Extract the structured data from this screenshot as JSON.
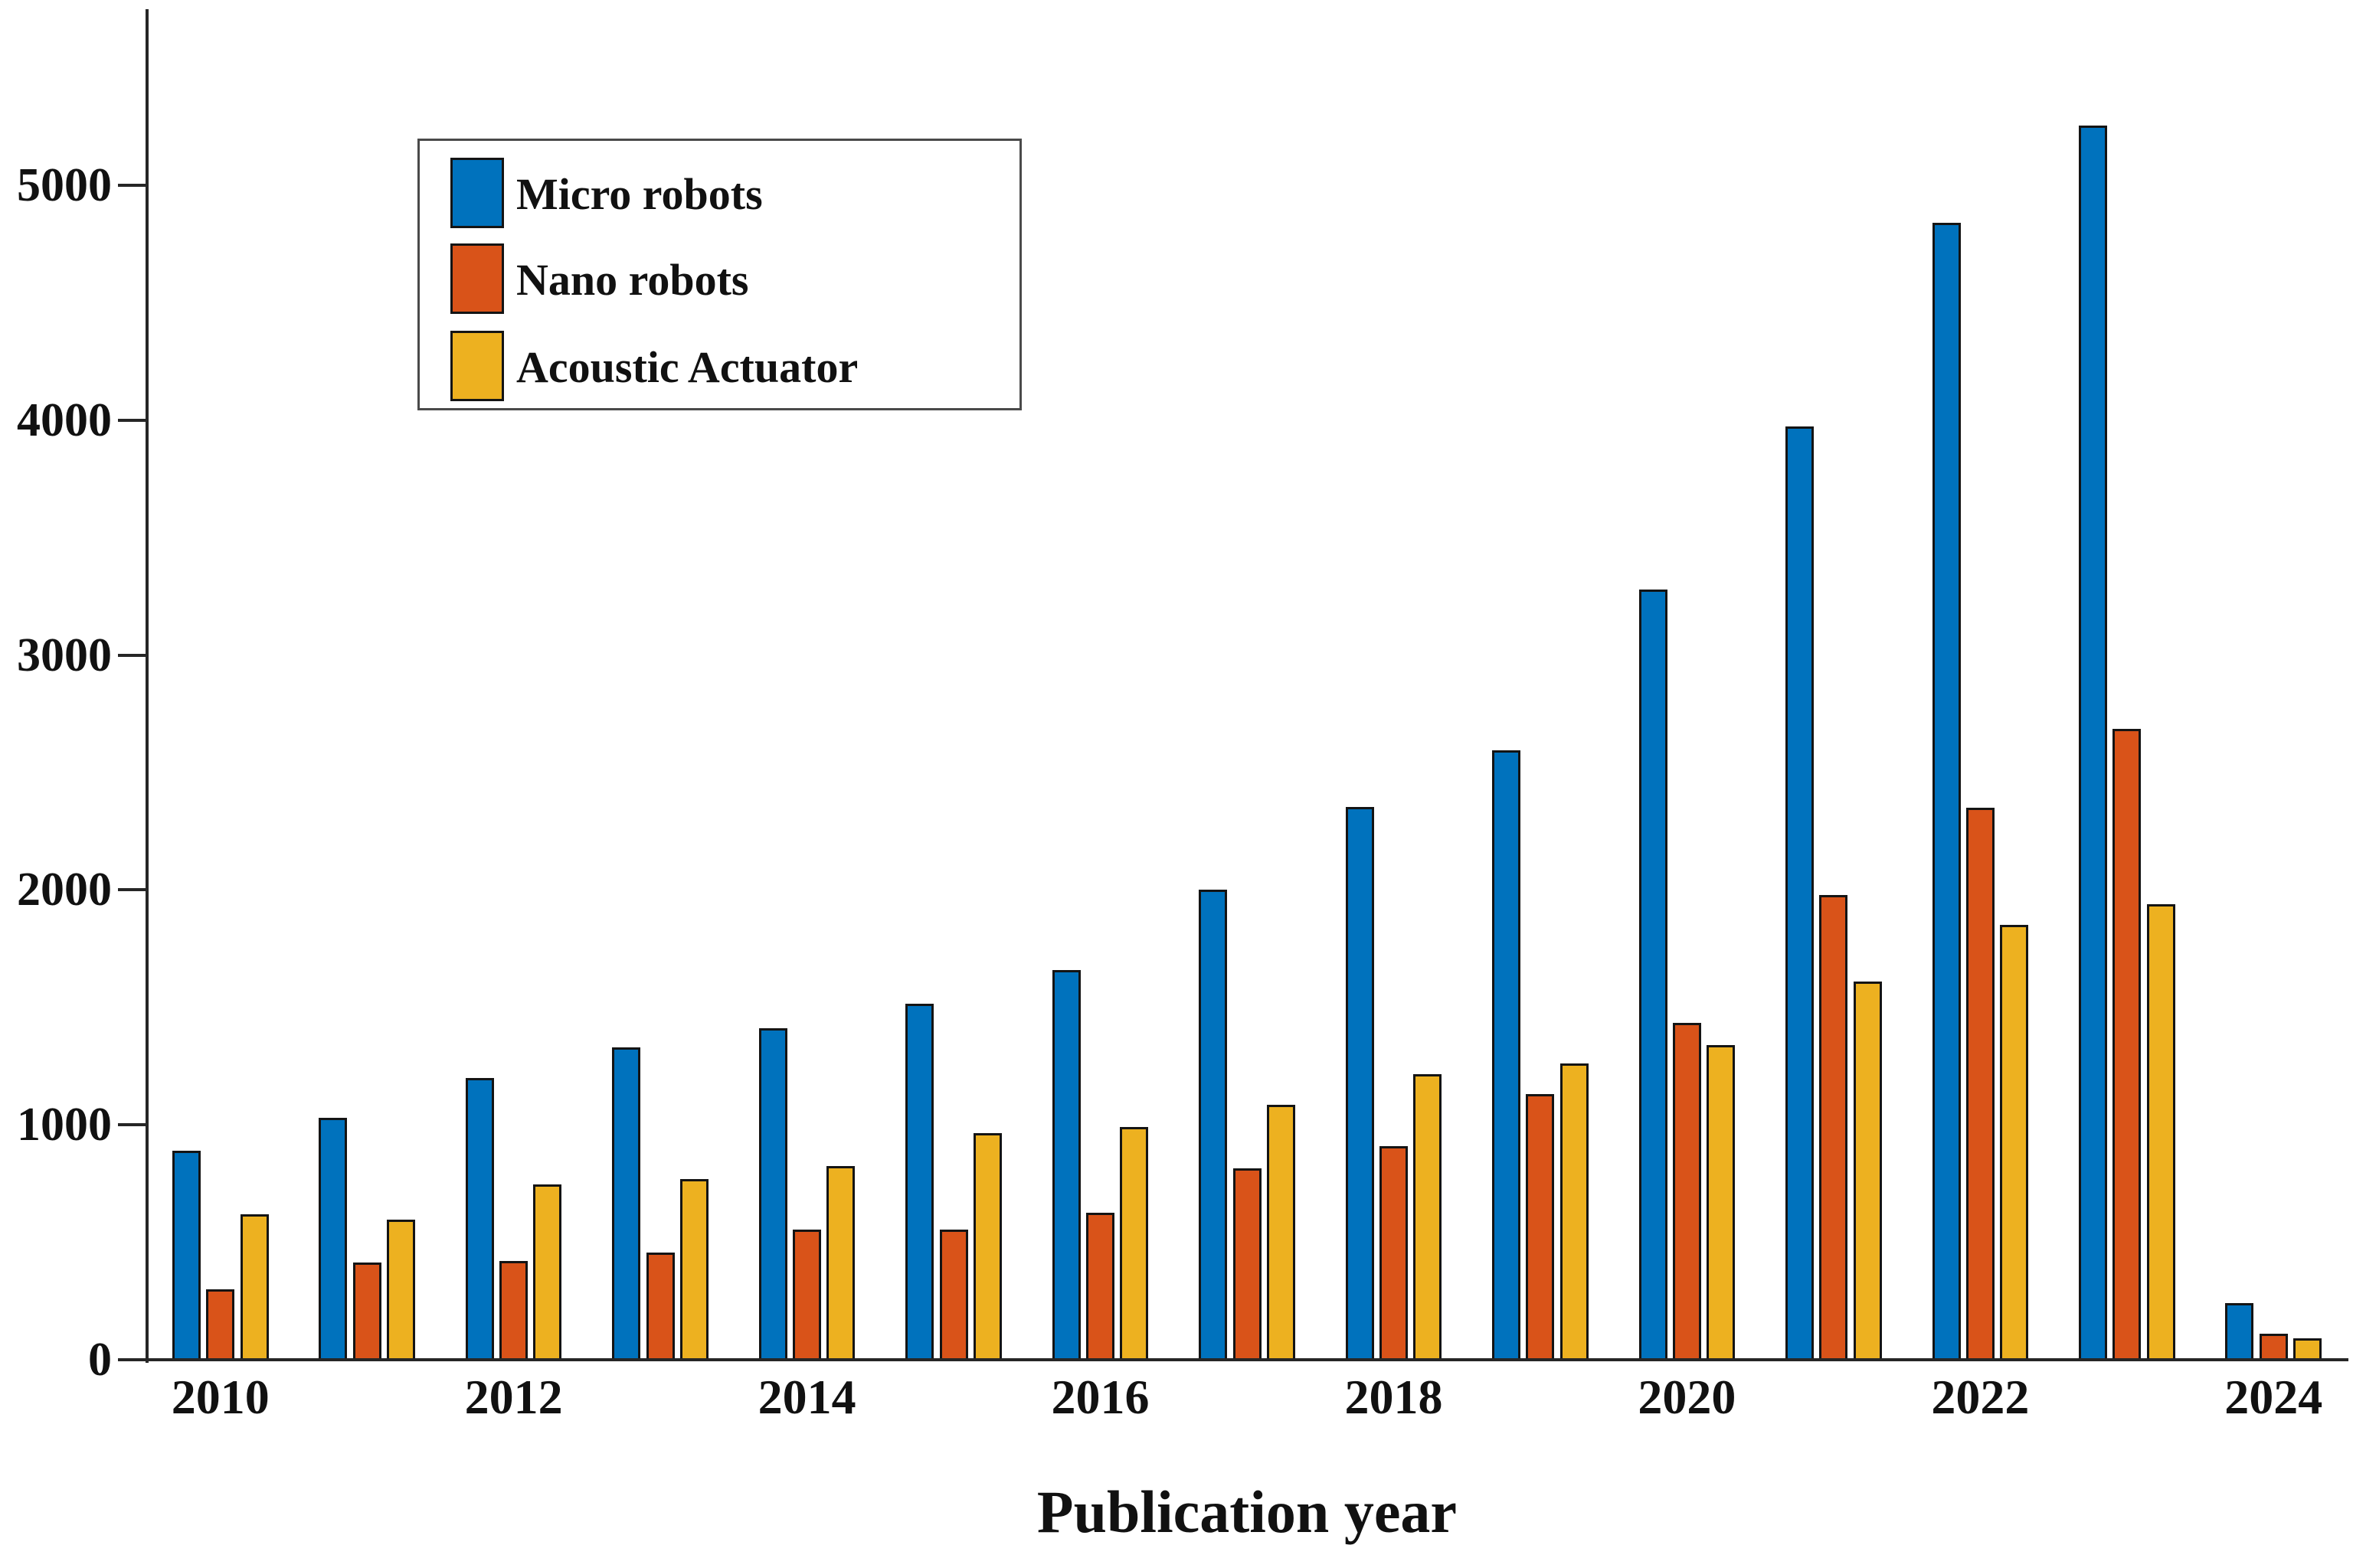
{
  "figure": {
    "background": "#ffffff",
    "axis_color": "#262626",
    "text_color": "#111111"
  },
  "chart_data": {
    "type": "bar",
    "title": "",
    "xlabel": "Publication year",
    "ylabel": "",
    "categories": [
      "2010",
      "2011",
      "2012",
      "2013",
      "2014",
      "2015",
      "2016",
      "2017",
      "2018",
      "2019",
      "2020",
      "2021",
      "2022",
      "2023",
      "2024"
    ],
    "xtick_labels_shown": [
      "2010",
      "2012",
      "2014",
      "2016",
      "2018",
      "2020",
      "2022",
      "2024"
    ],
    "xtick_every": 2,
    "yticks": [
      0,
      1000,
      2000,
      3000,
      4000,
      5000
    ],
    "ytick_labels": [
      "0",
      "1000",
      "2000",
      "3000",
      "4000",
      "5000"
    ],
    "ylim": [
      0,
      5750
    ],
    "grid": false,
    "legend_position": "top-left",
    "bar_edge_color": "#141414",
    "series": [
      {
        "name": "Micro robots",
        "color": "#0072BD",
        "values": [
          890,
          1030,
          1200,
          1330,
          1410,
          1515,
          1660,
          2000,
          2355,
          2595,
          3280,
          3975,
          4840,
          5255,
          240
        ]
      },
      {
        "name": "Nano robots",
        "color": "#D95319",
        "values": [
          300,
          415,
          420,
          455,
          555,
          555,
          625,
          815,
          910,
          1130,
          1435,
          1980,
          2350,
          2685,
          110
        ]
      },
      {
        "name": "Acoustic Actuator",
        "color": "#EDB120",
        "values": [
          620,
          595,
          745,
          770,
          825,
          965,
          990,
          1085,
          1215,
          1260,
          1340,
          1610,
          1850,
          1940,
          90
        ]
      }
    ]
  }
}
